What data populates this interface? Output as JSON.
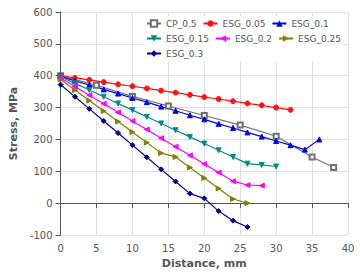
{
  "chart_data": {
    "type": "line",
    "xlabel": "Distance, mm",
    "ylabel": "Stress, MPa",
    "xlim": [
      0,
      40
    ],
    "ylim": [
      -100,
      600
    ],
    "xticks": [
      0,
      5,
      10,
      15,
      20,
      25,
      30,
      35,
      40
    ],
    "yticks": [
      -100,
      0,
      100,
      200,
      300,
      400,
      500,
      600
    ],
    "grid": true,
    "legend": "upper right",
    "series": [
      {
        "name": "CP_0.5",
        "color": "#707070",
        "marker": "square-open",
        "x": [
          0,
          5,
          10,
          15,
          20,
          25,
          30,
          35,
          38
        ],
        "values": [
          400,
          370,
          335,
          305,
          275,
          245,
          210,
          145,
          112
        ]
      },
      {
        "name": "ESG_0.05",
        "color": "#ff1010",
        "marker": "circle",
        "x": [
          0,
          2,
          4,
          6,
          8,
          10,
          12,
          14,
          16,
          18,
          20,
          22,
          24,
          26,
          28,
          30,
          32
        ],
        "values": [
          400,
          393,
          387,
          380,
          373,
          367,
          360,
          353,
          347,
          340,
          333,
          327,
          320,
          313,
          307,
          300,
          293
        ]
      },
      {
        "name": "ESG_0.1",
        "color": "#0000ee",
        "marker": "triangle-up",
        "x": [
          0,
          2,
          4,
          6,
          8,
          10,
          12,
          14,
          16,
          18,
          20,
          22,
          24,
          26,
          28,
          30,
          32,
          34,
          36
        ],
        "values": [
          398,
          384,
          371,
          357,
          344,
          330,
          317,
          303,
          290,
          276,
          263,
          249,
          236,
          222,
          209,
          195,
          182,
          168,
          200
        ]
      },
      {
        "name": "ESG_0.15",
        "color": "#008b8b",
        "marker": "triangle-down",
        "x": [
          0,
          2,
          4,
          6,
          8,
          10,
          12,
          14,
          16,
          18,
          20,
          22,
          24,
          26,
          28,
          30
        ],
        "values": [
          397,
          376,
          355,
          334,
          313,
          292,
          271,
          250,
          229,
          208,
          187,
          166,
          145,
          124,
          120,
          115
        ]
      },
      {
        "name": "ESG_0.2",
        "color": "#ff00ff",
        "marker": "triangle-left",
        "x": [
          0,
          2,
          4,
          6,
          8,
          10,
          12,
          14,
          16,
          18,
          20,
          22,
          24,
          26,
          28
        ],
        "values": [
          393,
          366,
          339,
          312,
          285,
          258,
          231,
          204,
          177,
          150,
          123,
          96,
          69,
          57,
          55
        ]
      },
      {
        "name": "ESG_0.25",
        "color": "#808000",
        "marker": "triangle-right",
        "x": [
          0,
          2,
          4,
          6,
          8,
          10,
          12,
          14,
          16,
          18,
          20,
          22,
          24,
          26
        ],
        "values": [
          388,
          355,
          322,
          289,
          256,
          223,
          190,
          157,
          145,
          112,
          79,
          46,
          13,
          0
        ]
      },
      {
        "name": "ESG_0.3",
        "color": "#00008b",
        "marker": "diamond",
        "x": [
          0,
          2,
          4,
          6,
          8,
          10,
          12,
          14,
          16,
          18,
          20,
          22,
          24,
          26
        ],
        "values": [
          372,
          334,
          296,
          258,
          220,
          182,
          144,
          106,
          68,
          30,
          15,
          -25,
          -55,
          -75
        ]
      }
    ]
  }
}
